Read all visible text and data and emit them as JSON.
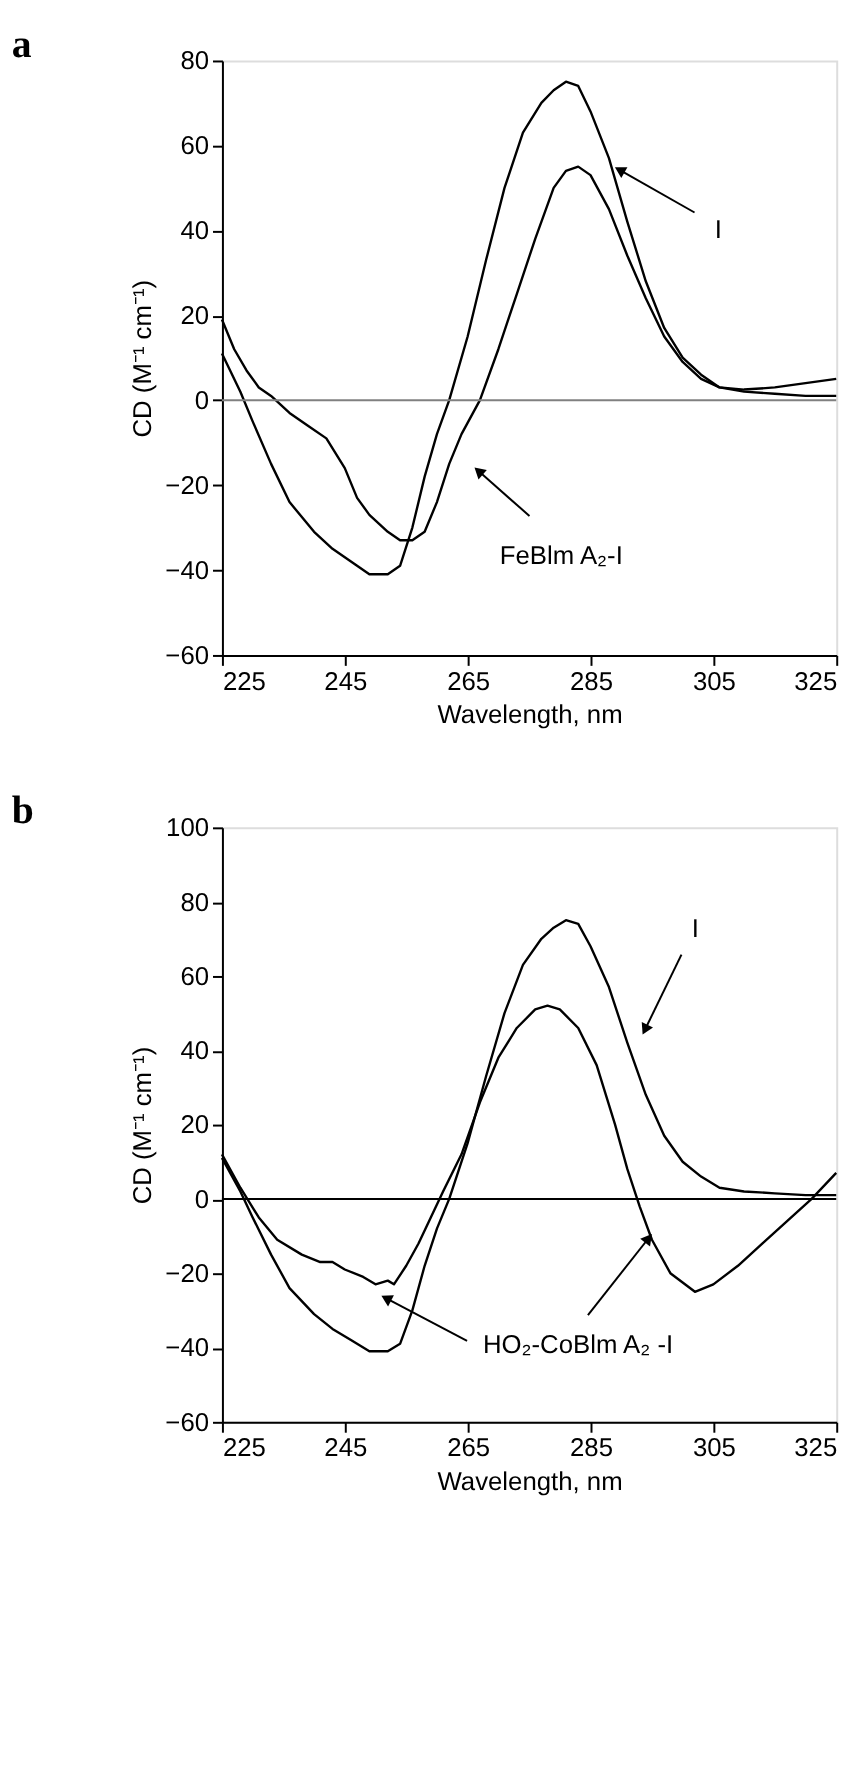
{
  "chart_data": [
    {
      "type": "line",
      "title": "a",
      "xlabel": "Wavelength, nm",
      "ylabel": "CD (M⁻¹ cm⁻¹)",
      "xlim": [
        225,
        325
      ],
      "xticks": [
        225,
        245,
        265,
        285,
        305,
        325
      ],
      "ylim": [
        -60,
        80
      ],
      "yticks": [
        -60,
        -40,
        -20,
        0,
        20,
        40,
        60,
        80
      ],
      "grid": false,
      "line_style": "solid",
      "ref_lines": [
        {
          "axis": "y",
          "value": 0,
          "color": "#808080"
        }
      ],
      "annotations": [
        {
          "text": "I",
          "x": 290,
          "y": 54
        },
        {
          "text": "FeBlm A₂-I",
          "x": 267,
          "y": -17
        }
      ],
      "series": [
        {
          "color": "#000000",
          "x": [
            225,
            228,
            230,
            233,
            236,
            240,
            243,
            246,
            249,
            252,
            254,
            256,
            258,
            260,
            262,
            265,
            268,
            271,
            274,
            277,
            279,
            281,
            283,
            285,
            288,
            291,
            294,
            297,
            300,
            303,
            306,
            310,
            315,
            320,
            325
          ],
          "values": [
            11,
            2,
            -5,
            -15,
            -24,
            -31,
            -35,
            -38,
            -41,
            -41,
            -39,
            -30,
            -18,
            -8,
            0,
            15,
            33,
            50,
            63,
            70,
            73,
            75,
            74,
            68,
            57,
            42,
            28,
            17,
            10,
            6,
            3,
            2,
            1.5,
            1,
            1
          ]
        },
        {
          "color": "#000000",
          "x": [
            225,
            227,
            229,
            231,
            233,
            236,
            239,
            242,
            245,
            247,
            249,
            252,
            254,
            256,
            258,
            260,
            262,
            264,
            267,
            270,
            273,
            276,
            279,
            281,
            283,
            285,
            288,
            291,
            294,
            297,
            300,
            303,
            306,
            310,
            315,
            320,
            325
          ],
          "values": [
            19,
            12,
            7,
            3,
            1,
            -3,
            -6,
            -9,
            -16,
            -23,
            -27,
            -31,
            -33,
            -33,
            -31,
            -24,
            -15,
            -8,
            0,
            12,
            25,
            38,
            50,
            54,
            55,
            53,
            45,
            34,
            24,
            15,
            9,
            5,
            3,
            2.5,
            3,
            4,
            5
          ]
        }
      ]
    },
    {
      "type": "line",
      "title": "b",
      "xlabel": "Wavelength, nm",
      "ylabel": "CD (M⁻¹ cm⁻¹)",
      "xlim": [
        225,
        325
      ],
      "xticks": [
        225,
        245,
        265,
        285,
        305,
        325
      ],
      "ylim": [
        -60,
        100
      ],
      "yticks": [
        -60,
        -40,
        -20,
        0,
        20,
        40,
        60,
        80,
        100
      ],
      "grid": false,
      "line_style": "solid",
      "ref_lines": [
        {
          "axis": "y",
          "value": 0,
          "color": "#000000"
        }
      ],
      "annotations": [
        {
          "text": "I",
          "x": 294,
          "y": 46
        },
        {
          "text": "HO₂-CoBlm A₂ -I",
          "x": 252,
          "y": -27
        }
      ],
      "series": [
        {
          "color": "#000000",
          "x": [
            225,
            228,
            230,
            233,
            236,
            240,
            243,
            246,
            249,
            252,
            254,
            256,
            258,
            260,
            262,
            265,
            268,
            271,
            274,
            277,
            279,
            281,
            283,
            285,
            288,
            291,
            294,
            297,
            300,
            303,
            306,
            310,
            315,
            320,
            325
          ],
          "values": [
            11,
            2,
            -5,
            -15,
            -24,
            -31,
            -35,
            -38,
            -41,
            -41,
            -39,
            -30,
            -18,
            -8,
            0,
            15,
            33,
            50,
            63,
            70,
            73,
            75,
            74,
            68,
            57,
            42,
            28,
            17,
            10,
            6,
            3,
            2,
            1.5,
            1,
            1
          ]
        },
        {
          "color": "#000000",
          "x": [
            225,
            228,
            231,
            234,
            238,
            241,
            243,
            245,
            248,
            250,
            252,
            253,
            255,
            257,
            259,
            261,
            264,
            267,
            270,
            273,
            276,
            278,
            280,
            283,
            286,
            289,
            291,
            293,
            295,
            298,
            302,
            305,
            309,
            313,
            317,
            321,
            325
          ],
          "values": [
            12,
            3,
            -5,
            -11,
            -15,
            -17,
            -17,
            -19,
            -21,
            -23,
            -22,
            -23,
            -18,
            -12,
            -5,
            2,
            12,
            26,
            38,
            46,
            51,
            52,
            51,
            46,
            36,
            20,
            8,
            -2,
            -11,
            -20,
            -25,
            -23,
            -18,
            -12,
            -6,
            0,
            7
          ]
        }
      ]
    }
  ]
}
